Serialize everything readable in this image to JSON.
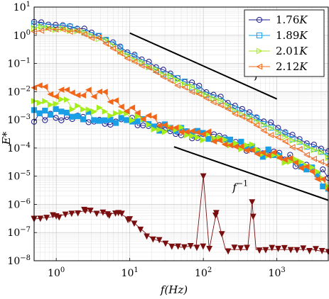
{
  "chart_data": {
    "type": "line",
    "title": "",
    "xlabel": "f(Hz)",
    "ylabel": "E*",
    "xscale": "log",
    "yscale": "log",
    "xlim": [
      0.5,
      5000
    ],
    "ylim": [
      1e-08,
      10
    ],
    "grid": true,
    "legend_position": "top-right",
    "x_tick_labels": [
      "10^0",
      "10^1",
      "10^2",
      "10^3"
    ],
    "y_tick_labels": [
      "10^-8",
      "10^-7",
      "10^-6",
      "10^-5",
      "10^-4",
      "10^-3",
      "10^-2",
      "10^-1",
      "10^0",
      "10^1"
    ],
    "series": [
      {
        "name": "1.76K",
        "color": "#1a1a8c",
        "marker": "circle",
        "fill": "none",
        "upper": [
          [
            0.5,
            3.0
          ],
          [
            1,
            2.5
          ],
          [
            2,
            1.9
          ],
          [
            4,
            0.9
          ],
          [
            10,
            0.25
          ],
          [
            30,
            0.055
          ],
          [
            100,
            0.012
          ],
          [
            300,
            0.0028
          ],
          [
            1000,
            0.00055
          ],
          [
            3000,
            0.00013
          ],
          [
            5000,
            8e-05
          ]
        ],
        "lower": [
          [
            0.5,
            0.0012
          ],
          [
            1,
            0.0012
          ],
          [
            3,
            0.0011
          ],
          [
            10,
            0.00085
          ],
          [
            30,
            0.00045
          ],
          [
            100,
            0.00025
          ],
          [
            300,
            0.00014
          ],
          [
            1000,
            6e-05
          ],
          [
            3000,
            2e-05
          ],
          [
            5000,
            9e-06
          ]
        ]
      },
      {
        "name": "1.89K",
        "color": "#1a9fe6",
        "marker": "square",
        "fill": "none",
        "upper": [
          [
            0.5,
            2.2
          ],
          [
            1,
            2.0
          ],
          [
            2,
            1.7
          ],
          [
            4,
            0.85
          ],
          [
            10,
            0.2
          ],
          [
            30,
            0.045
          ],
          [
            100,
            0.01
          ],
          [
            300,
            0.0022
          ],
          [
            1000,
            0.00045
          ],
          [
            3000,
            0.0001
          ],
          [
            5000,
            6e-05
          ]
        ],
        "lower": [
          [
            0.5,
            0.0018
          ],
          [
            1,
            0.0017
          ],
          [
            3,
            0.0014
          ],
          [
            10,
            0.001
          ],
          [
            30,
            0.0005
          ],
          [
            100,
            0.00025
          ],
          [
            300,
            0.00012
          ],
          [
            1000,
            5e-05
          ],
          [
            3000,
            1.5e-05
          ],
          [
            5000,
            4e-06
          ]
        ]
      },
      {
        "name": "2.01K",
        "color": "#a6ee1a",
        "marker": "triangle-right",
        "fill": "none",
        "upper": [
          [
            0.5,
            1.8
          ],
          [
            1,
            1.7
          ],
          [
            2,
            1.5
          ],
          [
            4,
            0.8
          ],
          [
            10,
            0.18
          ],
          [
            30,
            0.04
          ],
          [
            100,
            0.009
          ],
          [
            300,
            0.002
          ],
          [
            1000,
            0.0004
          ],
          [
            3000,
            9e-05
          ],
          [
            5000,
            5e-05
          ]
        ],
        "lower": [
          [
            0.5,
            0.005
          ],
          [
            1,
            0.005
          ],
          [
            2,
            0.003
          ],
          [
            4,
            0.0022
          ],
          [
            10,
            0.0011
          ],
          [
            30,
            0.0005
          ],
          [
            100,
            0.00025
          ],
          [
            300,
            0.00013
          ],
          [
            1000,
            5e-05
          ],
          [
            3000,
            2e-05
          ],
          [
            5000,
            6e-06
          ]
        ]
      },
      {
        "name": "2.12K",
        "color": "#f2661a",
        "marker": "triangle-left",
        "fill": "none",
        "upper": [
          [
            0.5,
            1.5
          ],
          [
            1,
            1.5
          ],
          [
            2,
            1.3
          ],
          [
            4,
            0.7
          ],
          [
            10,
            0.15
          ],
          [
            30,
            0.03
          ],
          [
            100,
            0.007
          ],
          [
            300,
            0.0015
          ],
          [
            1000,
            0.00025
          ],
          [
            3000,
            5e-05
          ],
          [
            5000,
            2.5e-05
          ]
        ],
        "lower": [
          [
            0.5,
            0.012
          ],
          [
            1,
            0.01
          ],
          [
            2,
            0.006
          ],
          [
            4,
            0.012
          ],
          [
            6,
            0.005
          ],
          [
            10,
            0.002
          ],
          [
            30,
            0.0008
          ],
          [
            100,
            0.0003
          ],
          [
            300,
            0.00014
          ],
          [
            1000,
            5e-05
          ],
          [
            3000,
            1.5e-05
          ],
          [
            5000,
            4e-06
          ]
        ]
      }
    ],
    "noise_floor": {
      "color": "#7a0f0f",
      "marker": "triangle-down",
      "points": [
        [
          0.5,
          3e-07
        ],
        [
          1,
          3.8e-07
        ],
        [
          2.5,
          6e-07
        ],
        [
          5,
          4.5e-07
        ],
        [
          7,
          5e-07
        ],
        [
          10,
          3e-07
        ],
        [
          20,
          6e-08
        ],
        [
          50,
          3e-08
        ],
        [
          80,
          3.5e-08
        ],
        [
          100,
          1e-05
        ],
        [
          120,
          2.5e-08
        ],
        [
          150,
          5e-07
        ],
        [
          200,
          2.5e-08
        ],
        [
          400,
          2.5e-08
        ],
        [
          460,
          1.2e-06
        ],
        [
          520,
          2.5e-08
        ],
        [
          1000,
          2.5e-08
        ],
        [
          3000,
          2.5e-08
        ],
        [
          5000,
          2e-08
        ]
      ]
    },
    "reference_lines": [
      {
        "label": "f^{-5/3}",
        "label_base": "f",
        "label_exp": "−5/3",
        "points": [
          [
            10,
            1.2
          ],
          [
            1000,
            0.0055
          ]
        ],
        "label_at": [
          500,
          0.03
        ]
      },
      {
        "label": "f^{-1}",
        "label_base": "f",
        "label_exp": "−1",
        "points": [
          [
            40,
            0.00011
          ],
          [
            5000,
            1.4e-06
          ]
        ],
        "label_at": [
          250,
          3e-06
        ]
      }
    ]
  }
}
